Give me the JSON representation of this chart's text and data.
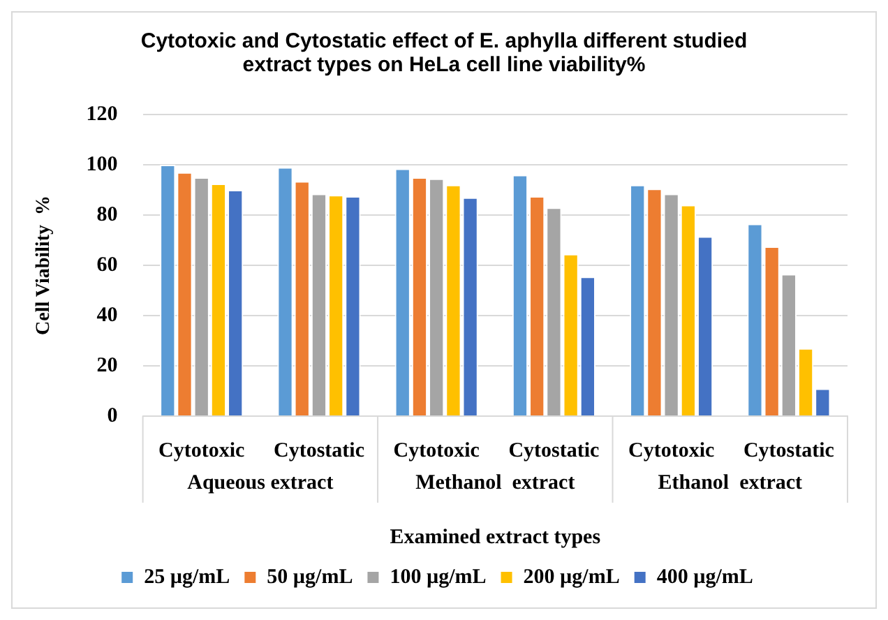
{
  "chart_data": {
    "type": "bar",
    "title": "Cytotoxic and Cytostatic effect of E. aphylla different studied extract types on HeLa cell line viability%",
    "xlabel": "Examined extract types",
    "ylabel": "Cell Viability  %",
    "categories": [
      "Cytotoxic",
      "Cytostatic",
      "Cytotoxic",
      "Cytostatic",
      "Cytotoxic",
      "Cytostatic"
    ],
    "annotations": [
      "Aqueous extract",
      "Methanol  extract",
      "Ethanol  extract"
    ],
    "series": [
      {
        "name": "25 µg/mL",
        "color": "#5b9bd5",
        "values": [
          100,
          99,
          98.5,
          96,
          92,
          76.5
        ]
      },
      {
        "name": "50 µg/mL",
        "color": "#ed7d31",
        "values": [
          97,
          93.5,
          95,
          87.5,
          90.5,
          67.5
        ]
      },
      {
        "name": "100 µg/mL",
        "color": "#a5a5a5",
        "values": [
          95,
          88.5,
          94.5,
          83,
          88.5,
          56.5
        ]
      },
      {
        "name": "200 µg/mL",
        "color": "#ffc000",
        "values": [
          92.5,
          88,
          92,
          64.5,
          84,
          27
        ]
      },
      {
        "name": "400 µg/mL",
        "color": "#4472c4",
        "values": [
          90,
          87.5,
          87,
          55.5,
          71.5,
          11
        ]
      }
    ],
    "ylim": [
      0,
      120
    ],
    "yticks": [
      0,
      20,
      40,
      60,
      80,
      100,
      120
    ],
    "grid": "y",
    "legend": "bottom"
  }
}
